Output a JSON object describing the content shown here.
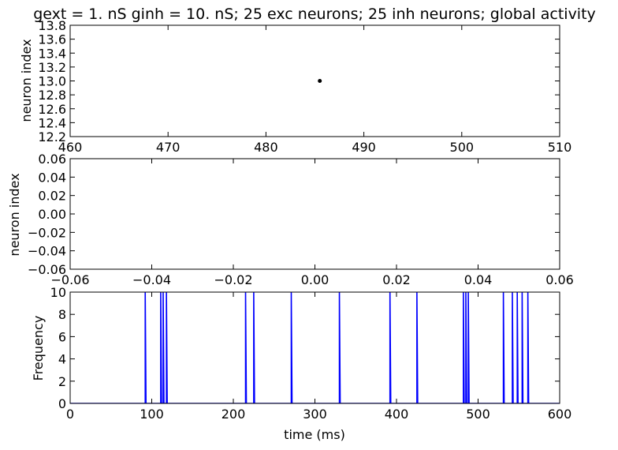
{
  "chart_data": [
    {
      "type": "scatter",
      "title": "gext = 1. nS ginh = 10. nS; 25 exc neurons; 25 inh neurons; global activity",
      "xlabel": "",
      "ylabel": "neuron index",
      "xlim": [
        460,
        510
      ],
      "ylim": [
        12.2,
        13.8
      ],
      "x_ticks": [
        460,
        470,
        480,
        490,
        500,
        510
      ],
      "x_tick_labels": [
        "460",
        "470",
        "480",
        "490",
        "500",
        "510"
      ],
      "y_ticks": [
        12.2,
        12.4,
        12.6,
        12.8,
        13.0,
        13.2,
        13.4,
        13.6,
        13.8
      ],
      "y_tick_labels": [
        "12.2",
        "12.4",
        "12.6",
        "12.8",
        "13.0",
        "13.2",
        "13.4",
        "13.6",
        "13.8"
      ],
      "points": [
        {
          "x": 485.5,
          "y": 13.0
        }
      ],
      "color": "#000000",
      "grid": false
    },
    {
      "type": "scatter",
      "title": "",
      "xlabel": "",
      "ylabel": "neuron index",
      "xlim": [
        -0.06,
        0.06
      ],
      "ylim": [
        -0.06,
        0.06
      ],
      "x_ticks": [
        -0.06,
        -0.04,
        -0.02,
        0.0,
        0.02,
        0.04,
        0.06
      ],
      "x_tick_labels": [
        "−0.06",
        "−0.04",
        "−0.02",
        "0.00",
        "0.02",
        "0.04",
        "0.06"
      ],
      "y_ticks": [
        -0.06,
        -0.04,
        -0.02,
        0.0,
        0.02,
        0.04,
        0.06
      ],
      "y_tick_labels": [
        "−0.06",
        "−0.04",
        "−0.02",
        "0.00",
        "0.02",
        "0.04",
        "0.06"
      ],
      "points": [],
      "grid": false
    },
    {
      "type": "line",
      "title": "",
      "xlabel": "time (ms)",
      "ylabel": "Frequency",
      "xlim": [
        0,
        600
      ],
      "ylim": [
        0,
        10
      ],
      "x_ticks": [
        0,
        100,
        200,
        300,
        400,
        500,
        600
      ],
      "x_tick_labels": [
        "0",
        "100",
        "200",
        "300",
        "400",
        "500",
        "600"
      ],
      "y_ticks": [
        0,
        2,
        4,
        6,
        8,
        10
      ],
      "y_tick_labels": [
        "0",
        "2",
        "4",
        "6",
        "8",
        "10"
      ],
      "spike_times": [
        92,
        111,
        114,
        118,
        215,
        225,
        271,
        330,
        392,
        425,
        482,
        485,
        488,
        531,
        542,
        548,
        554,
        561
      ],
      "spike_value": 10,
      "baseline": 0,
      "color": "#0000ff",
      "grid": false
    }
  ]
}
